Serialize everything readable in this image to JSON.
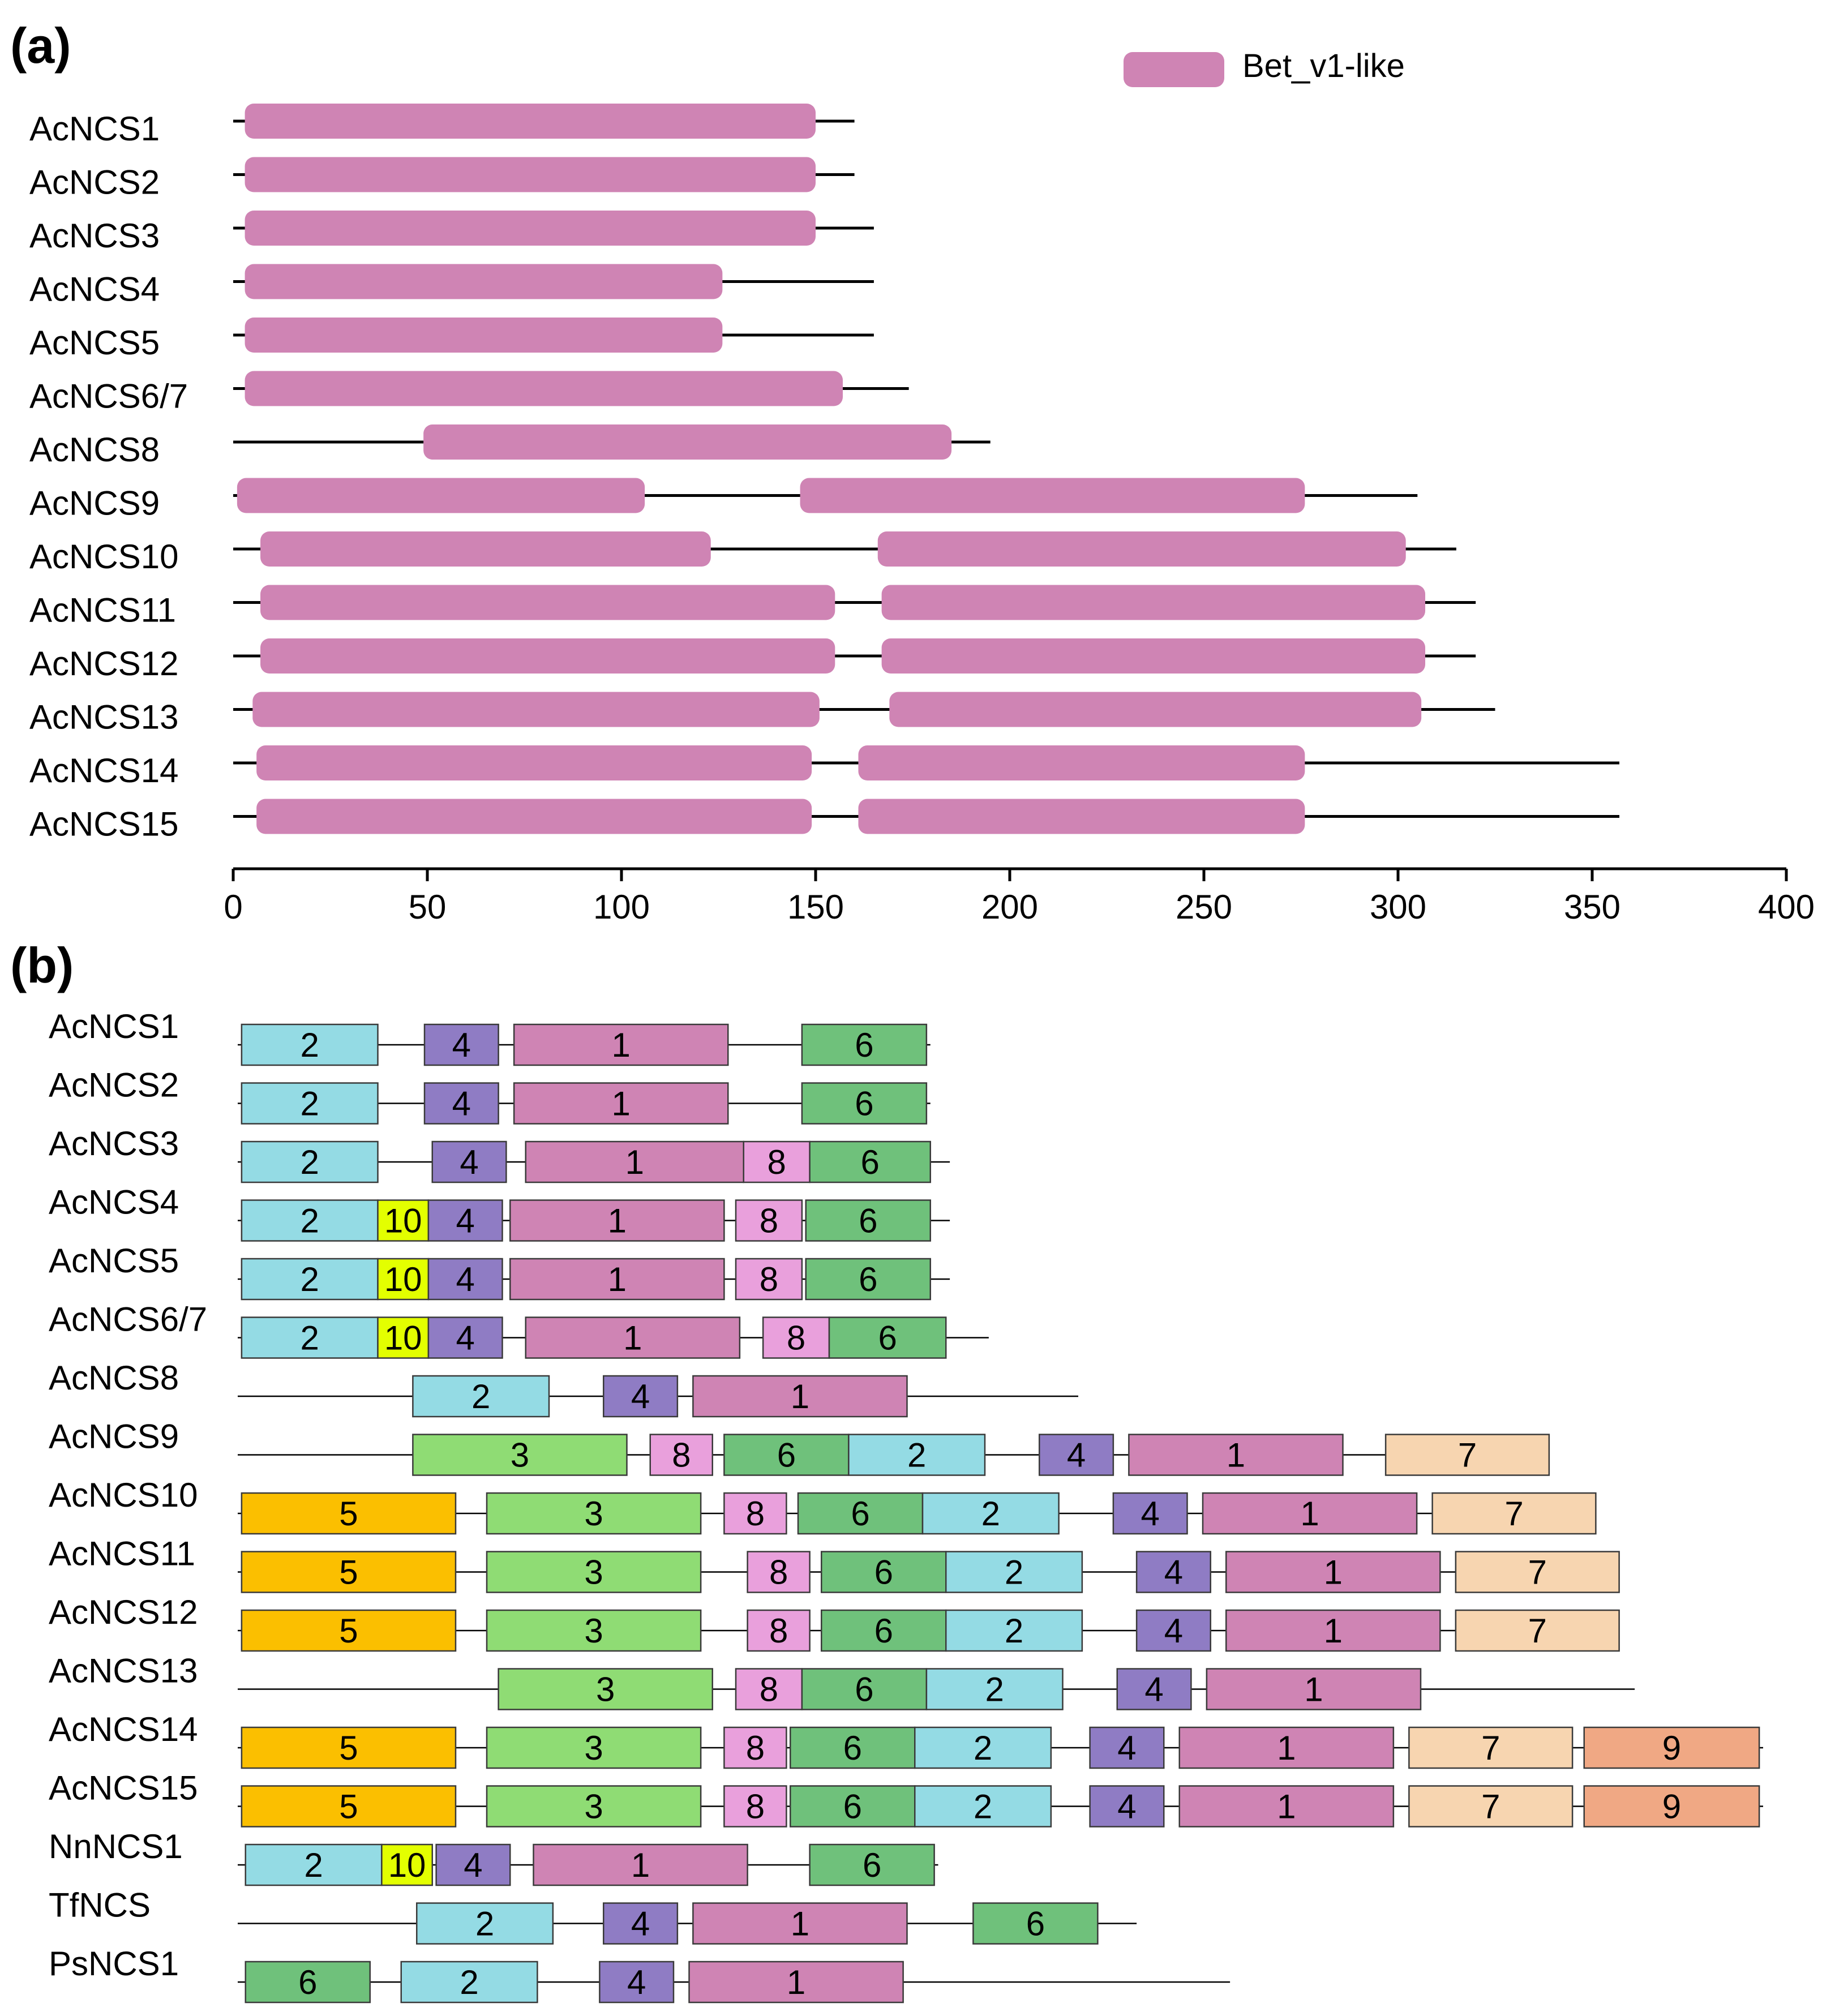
{
  "panel_labels": {
    "a": "(a)",
    "b": "(b)"
  },
  "colors": {
    "domain": "#cf84b4",
    "line": "#000000",
    "motif_stroke": "#3a3a3a",
    "motifs": {
      "1": "#cf84b4",
      "2": "#94dbe4",
      "3": "#8fdc74",
      "4": "#8f7cc4",
      "5": "#fbbf00",
      "6": "#6fc17b",
      "7": "#f7d5b0",
      "8": "#e9a0dc",
      "9": "#f0a884",
      "10": "#e3ff00"
    }
  },
  "chart_data": [
    {
      "type": "domain-architecture",
      "panel": "a",
      "legend": [
        {
          "label": "Bet_v1-like",
          "color": "#cf84b4"
        }
      ],
      "xlim": [
        0,
        400
      ],
      "xticks": [
        0,
        50,
        100,
        150,
        200,
        250,
        300,
        350,
        400
      ],
      "xlabel": "",
      "proteins": [
        {
          "name": "AcNCS1",
          "length": 160,
          "domains": [
            [
              3,
              150
            ]
          ]
        },
        {
          "name": "AcNCS2",
          "length": 160,
          "domains": [
            [
              3,
              150
            ]
          ]
        },
        {
          "name": "AcNCS3",
          "length": 165,
          "domains": [
            [
              3,
              150
            ]
          ]
        },
        {
          "name": "AcNCS4",
          "length": 165,
          "domains": [
            [
              3,
              126
            ]
          ]
        },
        {
          "name": "AcNCS5",
          "length": 165,
          "domains": [
            [
              3,
              126
            ]
          ]
        },
        {
          "name": "AcNCS6/7",
          "length": 174,
          "domains": [
            [
              3,
              157
            ]
          ]
        },
        {
          "name": "AcNCS8",
          "length": 195,
          "domains": [
            [
              49,
              185
            ]
          ]
        },
        {
          "name": "AcNCS9",
          "length": 305,
          "domains": [
            [
              1,
              106
            ],
            [
              146,
              276
            ]
          ]
        },
        {
          "name": "AcNCS10",
          "length": 315,
          "domains": [
            [
              7,
              123
            ],
            [
              166,
              302
            ]
          ]
        },
        {
          "name": "AcNCS11",
          "length": 320,
          "domains": [
            [
              7,
              155
            ],
            [
              167,
              307
            ]
          ]
        },
        {
          "name": "AcNCS12",
          "length": 320,
          "domains": [
            [
              7,
              155
            ],
            [
              167,
              307
            ]
          ]
        },
        {
          "name": "AcNCS13",
          "length": 325,
          "domains": [
            [
              5,
              151
            ],
            [
              169,
              306
            ]
          ]
        },
        {
          "name": "AcNCS14",
          "length": 357,
          "domains": [
            [
              6,
              149
            ],
            [
              161,
              276
            ]
          ]
        },
        {
          "name": "AcNCS15",
          "length": 357,
          "domains": [
            [
              6,
              149
            ],
            [
              161,
              276
            ]
          ]
        }
      ]
    },
    {
      "type": "motif-architecture",
      "panel": "b",
      "proteins": [
        {
          "name": "AcNCS1",
          "length": 178,
          "motifs": [
            [
              2,
              1,
              36
            ],
            [
              4,
              48,
              67
            ],
            [
              1,
              71,
              126
            ],
            [
              6,
              145,
              177
            ]
          ]
        },
        {
          "name": "AcNCS2",
          "length": 178,
          "motifs": [
            [
              2,
              1,
              36
            ],
            [
              4,
              48,
              67
            ],
            [
              1,
              71,
              126
            ],
            [
              6,
              145,
              177
            ]
          ]
        },
        {
          "name": "AcNCS3",
          "length": 183,
          "motifs": [
            [
              2,
              1,
              36
            ],
            [
              4,
              50,
              69
            ],
            [
              1,
              74,
              130
            ],
            [
              8,
              130,
              147
            ],
            [
              6,
              147,
              178
            ]
          ]
        },
        {
          "name": "AcNCS4",
          "length": 183,
          "motifs": [
            [
              2,
              1,
              36
            ],
            [
              10,
              36,
              49
            ],
            [
              4,
              49,
              68
            ],
            [
              1,
              70,
              125
            ],
            [
              8,
              128,
              145
            ],
            [
              6,
              146,
              178
            ]
          ]
        },
        {
          "name": "AcNCS5",
          "length": 183,
          "motifs": [
            [
              2,
              1,
              36
            ],
            [
              10,
              36,
              49
            ],
            [
              4,
              49,
              68
            ],
            [
              1,
              70,
              125
            ],
            [
              8,
              128,
              145
            ],
            [
              6,
              146,
              178
            ]
          ]
        },
        {
          "name": "AcNCS6/7",
          "length": 193,
          "motifs": [
            [
              2,
              1,
              36
            ],
            [
              10,
              36,
              49
            ],
            [
              4,
              49,
              68
            ],
            [
              1,
              74,
              129
            ],
            [
              8,
              135,
              152
            ],
            [
              6,
              152,
              182
            ]
          ]
        },
        {
          "name": "AcNCS8",
          "length": 216,
          "motifs": [
            [
              2,
              45,
              80
            ],
            [
              4,
              94,
              113
            ],
            [
              1,
              117,
              172
            ]
          ]
        },
        {
          "name": "AcNCS9",
          "length": 335,
          "motifs": [
            [
              3,
              45,
              100
            ],
            [
              8,
              106,
              122
            ],
            [
              6,
              125,
              157
            ],
            [
              2,
              157,
              192
            ],
            [
              4,
              206,
              225
            ],
            [
              1,
              229,
              284
            ],
            [
              7,
              295,
              337
            ]
          ]
        },
        {
          "name": "AcNCS10",
          "length": 347,
          "motifs": [
            [
              5,
              1,
              56
            ],
            [
              3,
              64,
              119
            ],
            [
              8,
              125,
              141
            ],
            [
              6,
              144,
              176
            ],
            [
              2,
              176,
              211
            ],
            [
              4,
              225,
              244
            ],
            [
              1,
              248,
              303
            ],
            [
              7,
              307,
              349
            ]
          ]
        },
        {
          "name": "AcNCS11",
          "length": 353,
          "motifs": [
            [
              5,
              1,
              56
            ],
            [
              3,
              64,
              119
            ],
            [
              8,
              131,
              147
            ],
            [
              6,
              150,
              182
            ],
            [
              2,
              182,
              217
            ],
            [
              4,
              231,
              250
            ],
            [
              1,
              254,
              309
            ],
            [
              7,
              313,
              355
            ]
          ]
        },
        {
          "name": "AcNCS12",
          "length": 353,
          "motifs": [
            [
              5,
              1,
              56
            ],
            [
              3,
              64,
              119
            ],
            [
              8,
              131,
              147
            ],
            [
              6,
              150,
              182
            ],
            [
              2,
              182,
              217
            ],
            [
              4,
              231,
              250
            ],
            [
              1,
              254,
              309
            ],
            [
              7,
              313,
              355
            ]
          ]
        },
        {
          "name": "AcNCS13",
          "length": 359,
          "motifs": [
            [
              3,
              67,
              122
            ],
            [
              8,
              128,
              145
            ],
            [
              6,
              145,
              177
            ],
            [
              2,
              177,
              212
            ],
            [
              4,
              226,
              245
            ],
            [
              1,
              249,
              304
            ]
          ]
        },
        {
          "name": "AcNCS14",
          "length": 392,
          "motifs": [
            [
              5,
              1,
              56
            ],
            [
              3,
              64,
              119
            ],
            [
              8,
              125,
              141
            ],
            [
              6,
              142,
              174
            ],
            [
              2,
              174,
              209
            ],
            [
              4,
              219,
              238
            ],
            [
              1,
              242,
              297
            ],
            [
              7,
              301,
              343
            ],
            [
              9,
              346,
              391
            ]
          ]
        },
        {
          "name": "AcNCS15",
          "length": 392,
          "motifs": [
            [
              5,
              1,
              56
            ],
            [
              3,
              64,
              119
            ],
            [
              8,
              125,
              141
            ],
            [
              6,
              142,
              174
            ],
            [
              2,
              174,
              209
            ],
            [
              4,
              219,
              238
            ],
            [
              1,
              242,
              297
            ],
            [
              7,
              301,
              343
            ],
            [
              9,
              346,
              391
            ]
          ]
        },
        {
          "name": "NnNCS1",
          "length": 180,
          "motifs": [
            [
              2,
              2,
              37
            ],
            [
              10,
              37,
              50
            ],
            [
              4,
              51,
              70
            ],
            [
              1,
              76,
              131
            ],
            [
              6,
              147,
              179
            ]
          ]
        },
        {
          "name": "TfNCS",
          "length": 231,
          "motifs": [
            [
              2,
              46,
              81
            ],
            [
              4,
              94,
              113
            ],
            [
              1,
              117,
              172
            ],
            [
              6,
              189,
              221
            ]
          ]
        },
        {
          "name": "PsNCS1",
          "length": 255,
          "motifs": [
            [
              6,
              2,
              34
            ],
            [
              2,
              42,
              77
            ],
            [
              4,
              93,
              112
            ],
            [
              1,
              116,
              171
            ]
          ]
        }
      ]
    }
  ]
}
